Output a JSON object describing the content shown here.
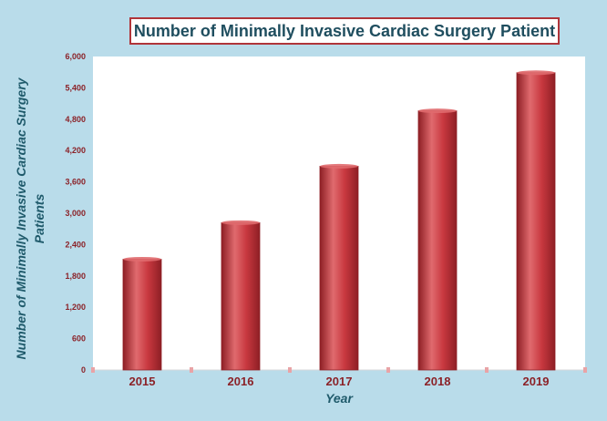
{
  "chart_data": {
    "type": "bar",
    "title": "Number of Minimally Invasive Cardiac Surgery Patient",
    "xlabel": "Year",
    "ylabel": "Number of Minimally Invasive Cardiac Surgery Patients",
    "categories": [
      "2015",
      "2016",
      "2017",
      "2018",
      "2019"
    ],
    "values": [
      2120,
      2820,
      3900,
      4960,
      5690
    ],
    "ylim": [
      0,
      6000
    ],
    "yticks": [
      "0",
      "600",
      "1,200",
      "1,800",
      "2,400",
      "3,000",
      "3,600",
      "4,200",
      "4,800",
      "5,400",
      "6,000"
    ],
    "grid": false,
    "legend": "none",
    "colors": {
      "bar": "#c8383f",
      "bar_dark": "#8e1f25",
      "bar_light": "#e06a6e",
      "tick_label": "#8b2228",
      "axis_title": "#1f5a6b",
      "title_text": "#1f4e5f",
      "title_border": "#b0353a",
      "background": "#b9dcea",
      "plot_area": "#ffffff"
    }
  }
}
